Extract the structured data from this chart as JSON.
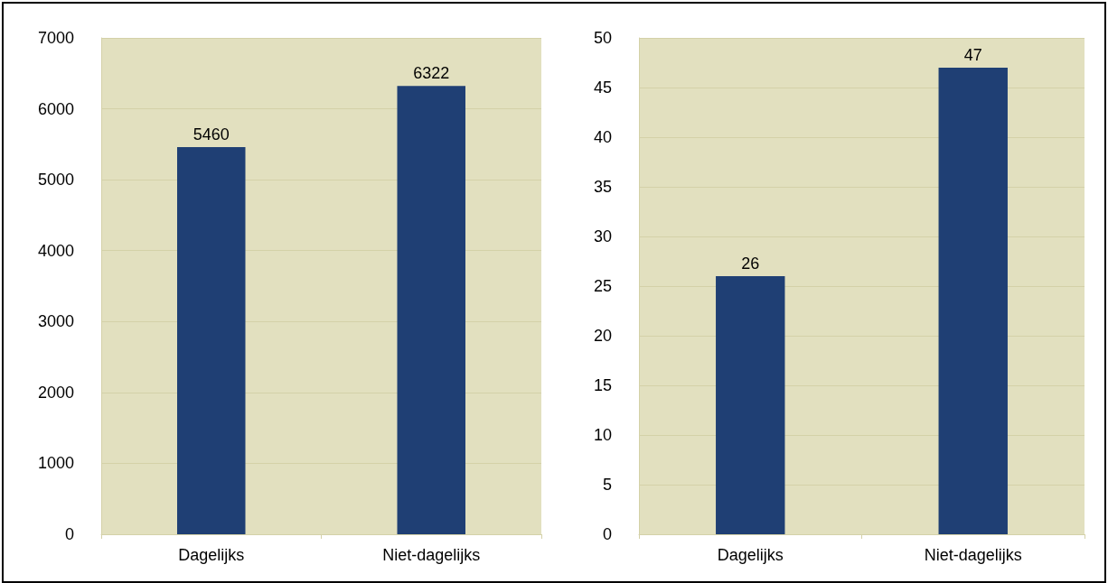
{
  "chart_data": [
    {
      "type": "bar",
      "categories": [
        "Dagelijks",
        "Niet-dagelijks"
      ],
      "values": [
        5460,
        6322
      ],
      "color": "#1f3f74",
      "ylim": [
        0,
        7000
      ],
      "yticks": [
        0,
        1000,
        2000,
        3000,
        4000,
        5000,
        6000,
        7000
      ],
      "grid": "y",
      "data_labels": true
    },
    {
      "type": "bar",
      "categories": [
        "Dagelijks",
        "Niet-dagelijks"
      ],
      "values": [
        26,
        47
      ],
      "color": "#1f3f74",
      "ylim": [
        0,
        50
      ],
      "yticks": [
        0,
        5,
        10,
        15,
        20,
        25,
        30,
        35,
        40,
        45,
        50
      ],
      "grid": "y",
      "data_labels": true
    }
  ]
}
